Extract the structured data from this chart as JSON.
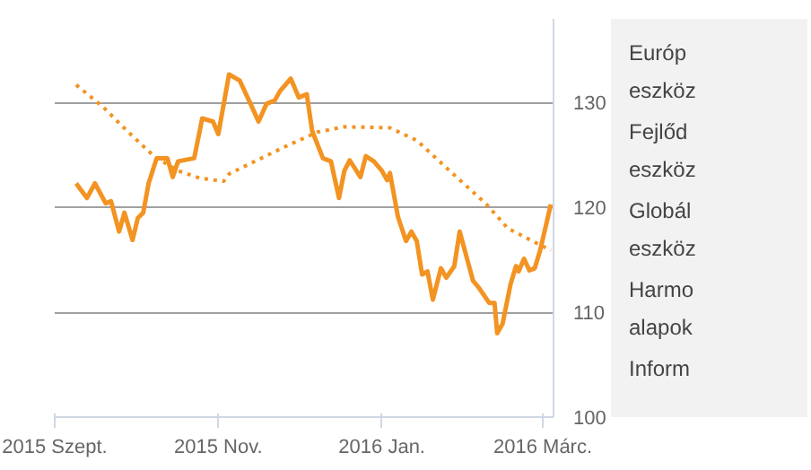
{
  "chart_data": {
    "type": "line",
    "xlim": [
      "2015-09-01",
      "2016-03-05"
    ],
    "xticks": [
      {
        "value": "2015-09-01",
        "label": "2015 Szept."
      },
      {
        "value": "2015-11-01",
        "label": "2015 Nov."
      },
      {
        "value": "2016-01-01",
        "label": "2016 Jan."
      },
      {
        "value": "2016-03-01",
        "label": "2016 Márc."
      }
    ],
    "ylim": [
      100,
      138
    ],
    "yticks": [
      100,
      110,
      120,
      130
    ],
    "grid": "y",
    "series": [
      {
        "color": "#f39322",
        "line_style": "solid",
        "x": [
          "2015-09-09",
          "2015-09-13",
          "2015-09-16",
          "2015-09-20",
          "2015-09-22",
          "2015-09-25",
          "2015-09-27",
          "2015-09-30",
          "2015-10-02",
          "2015-10-04",
          "2015-10-06",
          "2015-10-09",
          "2015-10-13",
          "2015-10-15",
          "2015-10-17",
          "2015-10-23",
          "2015-10-26",
          "2015-10-30",
          "2015-11-01",
          "2015-11-05",
          "2015-11-09",
          "2015-11-13",
          "2015-11-16",
          "2015-11-19",
          "2015-11-22",
          "2015-11-24",
          "2015-11-28",
          "2015-12-01",
          "2015-12-04",
          "2015-12-06",
          "2015-12-10",
          "2015-12-13",
          "2015-12-16",
          "2015-12-18",
          "2015-12-20",
          "2015-12-24",
          "2015-12-26",
          "2015-12-29",
          "2016-01-01",
          "2016-01-03",
          "2016-01-04",
          "2016-01-07",
          "2016-01-10",
          "2016-01-12",
          "2016-01-14",
          "2016-01-16",
          "2016-01-18",
          "2016-01-20",
          "2016-01-23",
          "2016-01-25",
          "2016-01-28",
          "2016-01-30",
          "2016-02-04",
          "2016-02-06",
          "2016-02-10",
          "2016-02-12",
          "2016-02-13",
          "2016-02-15",
          "2016-02-18",
          "2016-02-20",
          "2016-02-21",
          "2016-02-23",
          "2016-02-25",
          "2016-02-27",
          "2016-02-29",
          "2016-03-04"
        ],
        "values": [
          122.3,
          120.9,
          122.3,
          120.4,
          120.6,
          117.7,
          119.5,
          116.9,
          119.0,
          119.5,
          122.3,
          124.7,
          124.7,
          122.9,
          124.4,
          124.7,
          128.5,
          128.2,
          127.0,
          132.7,
          132.1,
          129.9,
          128.2,
          129.9,
          130.2,
          131.1,
          132.3,
          130.5,
          130.8,
          127.3,
          124.7,
          124.4,
          120.9,
          123.5,
          124.5,
          122.9,
          124.9,
          124.4,
          123.5,
          122.6,
          123.3,
          119.1,
          116.8,
          117.7,
          116.8,
          113.6,
          113.9,
          111.2,
          114.2,
          113.3,
          114.4,
          117.7,
          113.0,
          112.4,
          110.9,
          110.9,
          108.0,
          108.9,
          112.7,
          114.4,
          113.9,
          115.1,
          114.0,
          114.2,
          115.9,
          120.3
        ]
      },
      {
        "color": "#f39322",
        "line_style": "dotted",
        "x": [
          "2015-09-09",
          "2015-09-19",
          "2015-09-28",
          "2015-10-08",
          "2015-10-17",
          "2015-10-25",
          "2015-11-03",
          "2015-11-05",
          "2015-11-25",
          "2015-12-08",
          "2015-12-18",
          "2016-01-04",
          "2016-01-14",
          "2016-01-25",
          "2016-02-09",
          "2016-02-17",
          "2016-03-04"
        ],
        "values": [
          131.7,
          129.6,
          127.3,
          124.9,
          123.5,
          122.8,
          122.5,
          123.2,
          125.7,
          127.2,
          127.7,
          127.6,
          126.4,
          123.8,
          120.3,
          118.0,
          115.9
        ]
      }
    ],
    "annotations": [
      "Európ\neszköz",
      "Fejlőd\neszköz",
      "Globál\neszköz",
      "Harmo\nalapok",
      "Inform"
    ]
  }
}
